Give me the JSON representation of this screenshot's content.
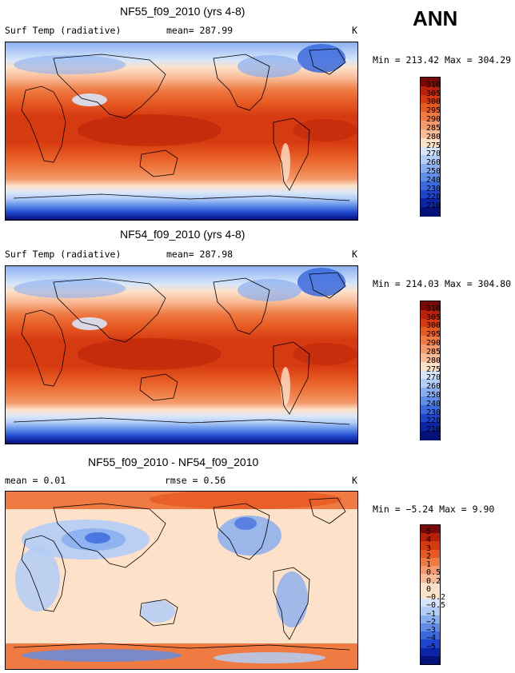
{
  "season": "ANN",
  "units": "K",
  "panels": [
    {
      "title": "NF55_f09_2010 (yrs 4-8)",
      "subtitle_left": "Surf Temp (radiative)",
      "stat1": "mean= 287.99",
      "stat2": "",
      "units": "K",
      "minmax": "Min = 213.42 Max = 304.29",
      "colorbar": [
        "310",
        "305",
        "300",
        "295",
        "290",
        "285",
        "280",
        "275",
        "270",
        "260",
        "250",
        "240",
        "230",
        "220",
        "210"
      ]
    },
    {
      "title": "NF54_f09_2010 (yrs 4-8)",
      "subtitle_left": "Surf Temp (radiative)",
      "stat1": "mean= 287.98",
      "stat2": "",
      "units": "K",
      "minmax": "Min = 214.03 Max = 304.80",
      "colorbar": [
        "310",
        "305",
        "300",
        "295",
        "290",
        "285",
        "280",
        "275",
        "270",
        "260",
        "250",
        "240",
        "230",
        "220",
        "210"
      ]
    },
    {
      "title": "NF55_f09_2010 - NF54_f09_2010",
      "subtitle_left": "mean =   0.01",
      "stat1": "rmse =   0.56",
      "stat2": "",
      "units": "K",
      "minmax": "Min = −5.24 Max =   9.90",
      "colorbar": [
        "5",
        "4",
        "3",
        "2",
        "1",
        "0.5",
        "0.2",
        "0",
        "−0.2",
        "−0.5",
        "−1",
        "−2",
        "−3",
        "−4",
        "−5"
      ]
    }
  ],
  "colors": {
    "abs_scale": [
      "#7a0a0a",
      "#b82008",
      "#d63a10",
      "#e65a22",
      "#ef7a42",
      "#f49a6c",
      "#f8bb98",
      "#fde2c9",
      "#d6e6fa",
      "#b2cdf6",
      "#8aaff0",
      "#5f8de8",
      "#3a68dd",
      "#1c44cc",
      "#0c24a8",
      "#051078"
    ],
    "diff_scale": [
      "#7a0a0a",
      "#b82008",
      "#d63a10",
      "#e65a22",
      "#ef7a42",
      "#f49a6c",
      "#f8bb98",
      "#fde2c9",
      "#fde2c9",
      "#d6e6fa",
      "#b2cdf6",
      "#8aaff0",
      "#5f8de8",
      "#3a68dd",
      "#1c44cc",
      "#0c24a8",
      "#051078"
    ]
  }
}
